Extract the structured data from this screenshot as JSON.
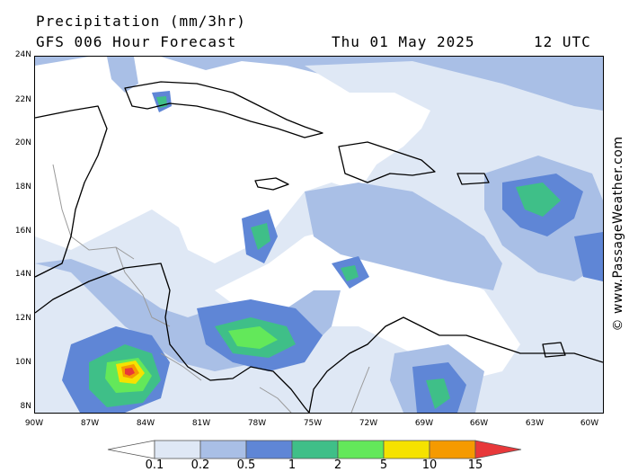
{
  "header": {
    "title": "Precipitation (mm/3hr)",
    "model": "GFS 006 Hour Forecast",
    "date": "Thu 01 May 2025",
    "time": "12 UTC"
  },
  "credit": "© www.PassageWeather.com",
  "map": {
    "lon_range": [
      -90,
      -59.5
    ],
    "lat_range": [
      7.4,
      24
    ],
    "lat_labels": [
      "24N",
      "22N",
      "20N",
      "18N",
      "16N",
      "14N",
      "12N",
      "10N",
      "8N"
    ],
    "lon_labels": [
      "90W",
      "87W",
      "84W",
      "81W",
      "78W",
      "75W",
      "72W",
      "69W",
      "66W",
      "63W",
      "60W"
    ],
    "land_color": "#ffffff",
    "coast_color": "#000000",
    "border_color": "#9a9a9a"
  },
  "legend": {
    "labels": [
      "0.1",
      "0.2",
      "0.5",
      "1",
      "2",
      "5",
      "10",
      "15"
    ],
    "colors": [
      "#ffffff",
      "#dfe8f5",
      "#a9bfe6",
      "#5f86d6",
      "#3fbf88",
      "#63e85a",
      "#f5e200",
      "#f59a00",
      "#e8383a"
    ]
  }
}
